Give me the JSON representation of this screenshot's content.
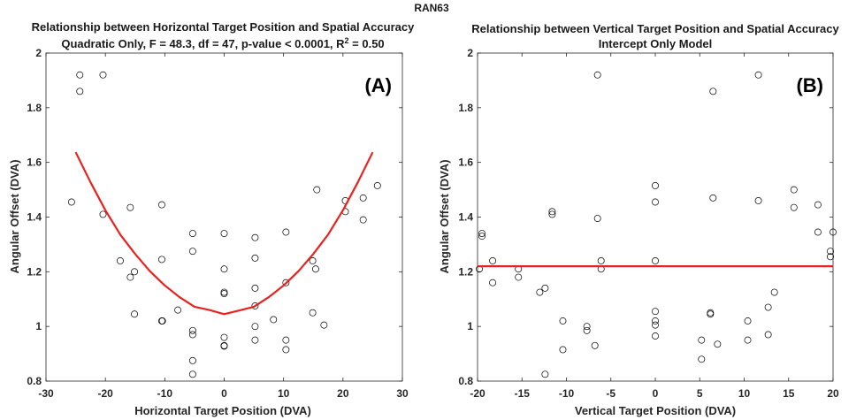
{
  "figure": {
    "title": "RAN63"
  },
  "chart_data": [
    {
      "type": "scatter",
      "panel_label": "(A)",
      "title": "Relationship between Horizontal Target Position and Spatial Accuracy",
      "subtitle_main": "Quadratic Only, F = 48.3, df = 47, p-value < 0.0001, R",
      "subtitle_sup": "2",
      "subtitle_tail": " = 0.50",
      "xlabel": "Horizontal Target Position (DVA)",
      "ylabel": "Angular Offset (DVA)",
      "xlim": [
        -30,
        30
      ],
      "ylim": [
        0.8,
        2
      ],
      "xticks": [
        -30,
        -20,
        -10,
        0,
        10,
        20,
        30
      ],
      "yticks": [
        0.8,
        1,
        1.2,
        1.4,
        1.6,
        1.8,
        2
      ],
      "xtick_labels": [
        "-30",
        "-20",
        "-10",
        "0",
        "10",
        "20",
        "30"
      ],
      "ytick_labels": [
        "0.8",
        "1",
        "1.2",
        "1.4",
        "1.6",
        "1.8",
        "2"
      ],
      "grid": false,
      "points": [
        [
          -24.3,
          1.92
        ],
        [
          -24.3,
          1.86
        ],
        [
          -20.4,
          1.92
        ],
        [
          -20.4,
          1.41
        ],
        [
          -25.7,
          1.455
        ],
        [
          -17.5,
          1.24
        ],
        [
          -15.8,
          1.435
        ],
        [
          -15.8,
          1.18
        ],
        [
          -15.1,
          1.2
        ],
        [
          -15.1,
          1.045
        ],
        [
          -10.5,
          1.445
        ],
        [
          -10.5,
          1.245
        ],
        [
          -10.5,
          1.02
        ],
        [
          -10.4,
          1.02
        ],
        [
          -7.8,
          1.06
        ],
        [
          -5.3,
          1.34
        ],
        [
          -5.3,
          1.275
        ],
        [
          -5.3,
          0.985
        ],
        [
          -5.3,
          0.97
        ],
        [
          -5.3,
          0.875
        ],
        [
          -5.3,
          0.825
        ],
        [
          0,
          1.34
        ],
        [
          0,
          1.21
        ],
        [
          0,
          1.125
        ],
        [
          0,
          1.12
        ],
        [
          0,
          0.96
        ],
        [
          0,
          0.93
        ],
        [
          0,
          0.928
        ],
        [
          5.2,
          1.325
        ],
        [
          5.2,
          1.25
        ],
        [
          5.2,
          1.14
        ],
        [
          5.2,
          1.075
        ],
        [
          5.2,
          1.0
        ],
        [
          5.2,
          0.95
        ],
        [
          8.3,
          1.025
        ],
        [
          10.4,
          1.345
        ],
        [
          10.4,
          1.16
        ],
        [
          10.4,
          0.95
        ],
        [
          10.4,
          0.915
        ],
        [
          14.9,
          1.24
        ],
        [
          15.4,
          1.21
        ],
        [
          15.6,
          1.5
        ],
        [
          14.9,
          1.05
        ],
        [
          16.8,
          1.005
        ],
        [
          20.4,
          1.46
        ],
        [
          20.4,
          1.42
        ],
        [
          23.4,
          1.47
        ],
        [
          23.4,
          1.39
        ],
        [
          25.8,
          1.515
        ]
      ],
      "fit_line": {
        "color": "#e8221f",
        "x": [
          -25,
          -22.5,
          -20,
          -17.5,
          -15,
          -12.5,
          -10,
          -7.5,
          -5,
          -2.5,
          0,
          2.5,
          5,
          7.5,
          10,
          12.5,
          15,
          17.5,
          20,
          22.5,
          25
        ],
        "y": [
          1.637,
          1.527,
          1.425,
          1.336,
          1.265,
          1.202,
          1.15,
          1.107,
          1.072,
          1.06,
          1.045,
          1.058,
          1.072,
          1.107,
          1.15,
          1.202,
          1.265,
          1.336,
          1.425,
          1.527,
          1.637
        ]
      }
    },
    {
      "type": "scatter",
      "panel_label": "(B)",
      "title": "Relationship between Vertical Target Position and Spatial Accuracy",
      "subtitle_main": "Intercept Only Model",
      "subtitle_sup": "",
      "subtitle_tail": "",
      "xlabel": "Vertical Target Position (DVA)",
      "ylabel": "Angular Offset (DVA)",
      "xlim": [
        -20,
        20
      ],
      "ylim": [
        0.8,
        2
      ],
      "xticks": [
        -20,
        -15,
        -10,
        -5,
        0,
        5,
        10,
        15,
        20
      ],
      "yticks": [
        0.8,
        1,
        1.2,
        1.4,
        1.6,
        1.8,
        2
      ],
      "xtick_labels": [
        "-20",
        "-15",
        "-10",
        "-5",
        "0",
        "5",
        "10",
        "15",
        "20"
      ],
      "ytick_labels": [
        "0.8",
        "1",
        "1.2",
        "1.4",
        "1.6",
        "1.8",
        "2"
      ],
      "grid": false,
      "points": [
        [
          -19.5,
          1.34
        ],
        [
          -19.5,
          1.33
        ],
        [
          -19.8,
          1.21
        ],
        [
          -18.3,
          1.24
        ],
        [
          -18.3,
          1.16
        ],
        [
          -15.4,
          1.21
        ],
        [
          -15.4,
          1.18
        ],
        [
          -13.0,
          1.125
        ],
        [
          -12.4,
          1.14
        ],
        [
          -12.4,
          0.825
        ],
        [
          -11.6,
          1.42
        ],
        [
          -11.6,
          1.41
        ],
        [
          -10.4,
          1.02
        ],
        [
          -10.4,
          0.915
        ],
        [
          -7.7,
          1.0
        ],
        [
          -7.7,
          0.985
        ],
        [
          -6.5,
          1.92
        ],
        [
          -6.5,
          1.395
        ],
        [
          -6.1,
          1.24
        ],
        [
          -6.1,
          1.21
        ],
        [
          -6.8,
          0.93
        ],
        [
          0,
          1.515
        ],
        [
          0,
          1.455
        ],
        [
          0,
          1.24
        ],
        [
          0,
          1.055
        ],
        [
          0,
          1.02
        ],
        [
          0,
          1.005
        ],
        [
          0,
          0.965
        ],
        [
          5.2,
          0.95
        ],
        [
          5.2,
          0.88
        ],
        [
          6.2,
          1.05
        ],
        [
          6.2,
          1.045
        ],
        [
          6.5,
          1.86
        ],
        [
          6.5,
          1.47
        ],
        [
          7.0,
          0.935
        ],
        [
          10.4,
          1.02
        ],
        [
          10.4,
          0.95
        ],
        [
          11.6,
          1.92
        ],
        [
          11.6,
          1.46
        ],
        [
          12.7,
          1.07
        ],
        [
          12.7,
          0.97
        ],
        [
          13.4,
          1.125
        ],
        [
          15.6,
          1.5
        ],
        [
          15.6,
          1.435
        ],
        [
          18.3,
          1.445
        ],
        [
          18.3,
          1.345
        ],
        [
          19.7,
          1.275
        ],
        [
          19.7,
          1.255
        ],
        [
          20.0,
          1.345
        ]
      ],
      "fit_line": {
        "color": "#e8221f",
        "x": [
          -20,
          20
        ],
        "y": [
          1.22,
          1.22
        ]
      }
    }
  ]
}
